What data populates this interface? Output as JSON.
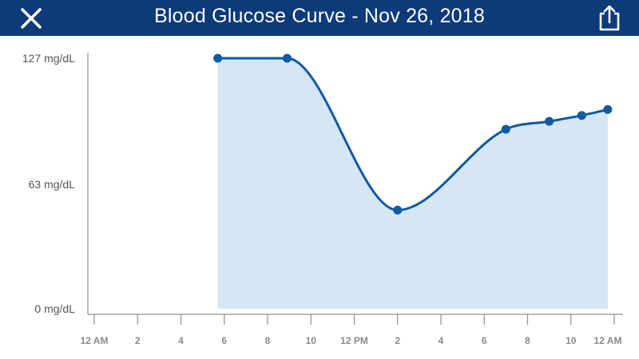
{
  "header": {
    "title": "Blood Glucose Curve - Nov 26, 2018",
    "close_icon": "close-icon",
    "share_icon": "share-icon",
    "background": "#0d3a78"
  },
  "chart_data": {
    "type": "area",
    "title": "Blood Glucose Curve - Nov 26, 2018",
    "xlabel": "",
    "ylabel": "",
    "unit": "mg/dL",
    "ylim": [
      0,
      127
    ],
    "y_ticks": [
      {
        "value": 0,
        "label": "0 mg/dL"
      },
      {
        "value": 63,
        "label": "63 mg/dL"
      },
      {
        "value": 127,
        "label": "127 mg/dL"
      }
    ],
    "x_range_hours": [
      0,
      24
    ],
    "x_ticks": [
      {
        "hour": 0,
        "label": "12 AM"
      },
      {
        "hour": 2,
        "label": "2"
      },
      {
        "hour": 4,
        "label": "4"
      },
      {
        "hour": 6,
        "label": "6"
      },
      {
        "hour": 8,
        "label": "8"
      },
      {
        "hour": 10,
        "label": "10"
      },
      {
        "hour": 12,
        "label": "12 PM"
      },
      {
        "hour": 14,
        "label": "2"
      },
      {
        "hour": 16,
        "label": "4"
      },
      {
        "hour": 18,
        "label": "6"
      },
      {
        "hour": 20,
        "label": "8"
      },
      {
        "hour": 22,
        "label": "10"
      },
      {
        "hour": 24,
        "label": "12 AM"
      }
    ],
    "series": [
      {
        "points": [
          {
            "hour": 5.7,
            "value": 127
          },
          {
            "hour": 8.9,
            "value": 127
          },
          {
            "hour": 14.0,
            "value": 50
          },
          {
            "hour": 19.0,
            "value": 91
          },
          {
            "hour": 21.0,
            "value": 95
          },
          {
            "hour": 22.5,
            "value": 98
          },
          {
            "hour": 23.7,
            "value": 101
          }
        ]
      }
    ],
    "line_color": "#0d5aa7",
    "fill_color": "#d6e6f2"
  }
}
